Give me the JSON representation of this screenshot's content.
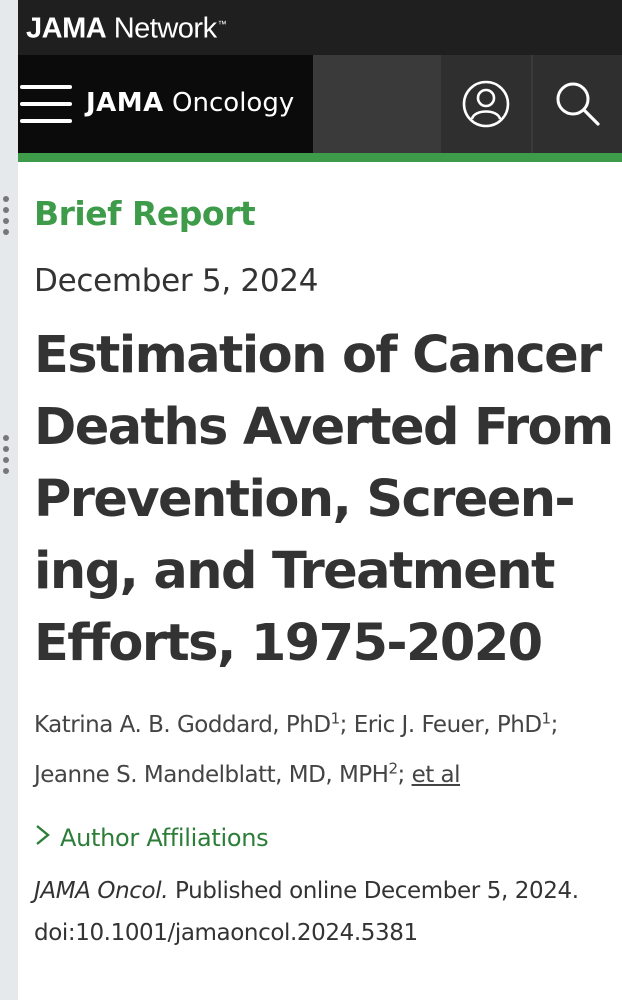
{
  "network": {
    "brand_bold": "JAMA",
    "brand_rest": " Network",
    "tm": "™"
  },
  "journal": {
    "bold": "JAMA",
    "rest": " Oncology"
  },
  "icons": {
    "menu": "hamburger-icon",
    "account": "user-icon",
    "search": "search-icon"
  },
  "colors": {
    "accent": "#3e9b4a",
    "header": "#1f1f1f",
    "menu_bg": "#0b0b0b"
  },
  "article": {
    "type": "Brief Report",
    "date": "December 5, 2024",
    "title_lines": [
      "Estimation of Cancer",
      "Deaths Averted From",
      "Prevention, Screen-",
      "ing, and Treatment",
      "Efforts, 1975-2020"
    ],
    "authors": {
      "a1": "Katrina A. B. Goddard, PhD",
      "a1_sup": "1",
      "sep1": "; ",
      "a2": "Eric J. Feuer, PhD",
      "a2_sup": "1",
      "sep2": ";",
      "a3": "Jeanne S. Mandelblatt, MD, MPH",
      "a3_sup": "2",
      "sep3": "; ",
      "etal": "et al"
    },
    "affiliations_label": "Author Affiliations",
    "citation": {
      "journal": "JAMA Oncol.",
      "published": " Published online December 5, 2024.",
      "doi": "doi:10.1001/jamaoncol.2024.5381"
    }
  }
}
